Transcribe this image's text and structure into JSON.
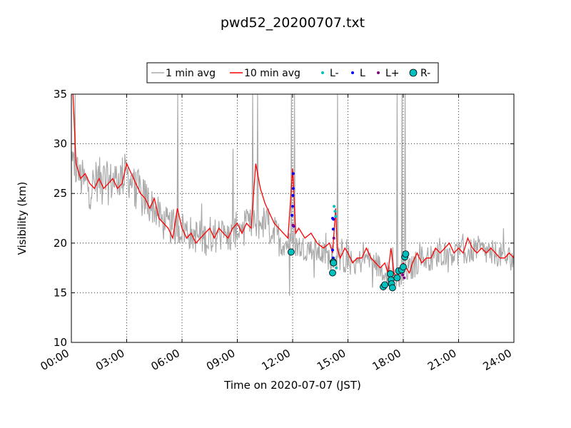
{
  "chart_data": {
    "type": "line",
    "title": "pwd52_20200707.txt",
    "xlabel": "Time on 2020-07-07 (JST)",
    "ylabel": "Visibility (km)",
    "xlim": [
      "00:00",
      "24:00"
    ],
    "ylim": [
      10,
      35
    ],
    "x_ticks": [
      "00:00",
      "03:00",
      "06:00",
      "09:00",
      "12:00",
      "15:00",
      "18:00",
      "21:00",
      "24:00"
    ],
    "y_ticks": [
      "10",
      "15",
      "20",
      "25",
      "30",
      "35"
    ],
    "grid": true,
    "legend_position": "top-center",
    "legend": [
      "1 min avg",
      "10 min avg",
      "L-",
      "L",
      "L+",
      "R-"
    ],
    "series": [
      {
        "name": "1 min avg",
        "color": "#aaaaaa",
        "style": "noisy-line",
        "x": [
          "00:00",
          "00:15",
          "00:30",
          "01:00",
          "01:30",
          "02:00",
          "02:30",
          "03:00",
          "03:30",
          "04:00",
          "04:30",
          "05:00",
          "05:30",
          "06:00",
          "06:30",
          "07:00",
          "07:30",
          "08:00",
          "08:30",
          "09:00",
          "09:30",
          "10:00",
          "10:30",
          "11:00",
          "11:30",
          "12:00",
          "12:30",
          "13:00",
          "13:30",
          "14:00",
          "14:30",
          "15:00",
          "15:30",
          "16:00",
          "16:30",
          "17:00",
          "17:30",
          "18:00",
          "18:30",
          "19:00",
          "19:30",
          "20:00",
          "20:30",
          "21:00",
          "21:30",
          "22:00",
          "22:30",
          "23:00",
          "23:30",
          "24:00"
        ],
        "y": [
          27.5,
          27.5,
          26.5,
          25.5,
          26.5,
          26.0,
          26.5,
          27.0,
          25.5,
          24.5,
          23.5,
          22.0,
          21.5,
          21.5,
          21.0,
          20.5,
          20.5,
          21.0,
          20.5,
          21.5,
          21.5,
          22.0,
          22.0,
          21.0,
          20.0,
          20.0,
          19.5,
          19.5,
          19.0,
          18.5,
          18.5,
          18.0,
          18.0,
          18.5,
          18.0,
          17.0,
          16.5,
          17.0,
          17.5,
          18.5,
          18.5,
          19.0,
          19.0,
          19.0,
          19.0,
          19.5,
          19.0,
          19.0,
          18.5,
          18.5
        ],
        "spikes": [
          {
            "x": "00:12",
            "y": 35.0
          },
          {
            "x": "05:45",
            "y": 35.0
          },
          {
            "x": "08:45",
            "y": 29.5
          },
          {
            "x": "09:50",
            "y": 35.0
          },
          {
            "x": "10:05",
            "y": 35.0
          },
          {
            "x": "11:55",
            "y": 35.0
          },
          {
            "x": "12:05",
            "y": 35.0
          },
          {
            "x": "14:25",
            "y": 35.0
          },
          {
            "x": "17:40",
            "y": 35.0
          },
          {
            "x": "17:55",
            "y": 35.0
          },
          {
            "x": "18:05",
            "y": 35.0
          }
        ],
        "dips": [
          {
            "x": "11:50",
            "y": 14.7
          },
          {
            "x": "16:20",
            "y": 15.5
          },
          {
            "x": "17:45",
            "y": 15.7
          },
          {
            "x": "13:10",
            "y": 16.5
          }
        ]
      },
      {
        "name": "10 min avg",
        "color": "#ff0000",
        "x": [
          "00:05",
          "00:15",
          "00:30",
          "00:45",
          "01:00",
          "01:15",
          "01:30",
          "01:45",
          "02:00",
          "02:15",
          "02:30",
          "02:45",
          "03:00",
          "03:15",
          "03:30",
          "03:45",
          "04:00",
          "04:15",
          "04:30",
          "04:45",
          "05:00",
          "05:15",
          "05:30",
          "05:45",
          "06:00",
          "06:15",
          "06:30",
          "06:45",
          "07:00",
          "07:15",
          "07:30",
          "07:45",
          "08:00",
          "08:15",
          "08:30",
          "08:45",
          "09:00",
          "09:15",
          "09:30",
          "09:45",
          "10:00",
          "10:15",
          "10:30",
          "10:45",
          "11:00",
          "11:15",
          "11:30",
          "11:45",
          "12:00",
          "12:10",
          "12:20",
          "12:40",
          "13:00",
          "13:20",
          "13:40",
          "14:00",
          "14:10",
          "14:20",
          "14:25",
          "14:35",
          "14:50",
          "15:00",
          "15:15",
          "15:30",
          "15:45",
          "16:00",
          "16:15",
          "16:30",
          "16:45",
          "17:00",
          "17:10",
          "17:20",
          "17:30",
          "17:40",
          "17:50",
          "18:00",
          "18:10",
          "18:20",
          "18:30",
          "18:45",
          "19:00",
          "19:15",
          "19:30",
          "19:45",
          "20:00",
          "20:15",
          "20:30",
          "20:45",
          "21:00",
          "21:15",
          "21:30",
          "21:45",
          "22:00",
          "22:15",
          "22:30",
          "22:45",
          "23:00",
          "23:15",
          "23:30",
          "23:45",
          "24:00"
        ],
        "y": [
          35.0,
          28.0,
          26.5,
          27.0,
          26.0,
          25.5,
          26.5,
          25.5,
          26.0,
          26.5,
          25.5,
          26.0,
          28.0,
          27.0,
          26.0,
          25.0,
          24.5,
          23.5,
          24.5,
          22.5,
          22.0,
          21.5,
          20.5,
          23.5,
          21.5,
          20.5,
          21.0,
          20.0,
          20.5,
          21.0,
          21.5,
          20.5,
          21.5,
          21.0,
          20.5,
          21.5,
          22.0,
          21.0,
          22.0,
          21.5,
          28.0,
          25.5,
          24.0,
          23.0,
          22.0,
          21.5,
          21.0,
          20.5,
          27.5,
          21.0,
          21.5,
          20.5,
          21.0,
          20.0,
          19.5,
          20.0,
          19.0,
          23.5,
          19.5,
          18.5,
          19.5,
          19.0,
          18.0,
          18.5,
          18.5,
          19.5,
          18.5,
          18.0,
          17.5,
          18.0,
          17.0,
          19.5,
          17.0,
          16.5,
          17.5,
          18.0,
          17.5,
          17.0,
          18.0,
          19.0,
          18.0,
          18.5,
          18.5,
          19.5,
          19.0,
          19.5,
          20.0,
          19.0,
          19.5,
          19.0,
          20.5,
          19.5,
          19.0,
          19.5,
          19.0,
          19.5,
          19.0,
          18.5,
          18.5,
          19.0,
          18.5
        ]
      },
      {
        "name": "L-",
        "color": "#00bfbf",
        "marker": "small-dot",
        "x": [
          "14:15",
          "14:18",
          "14:20",
          "14:22"
        ],
        "y": [
          23.7,
          23.2,
          22.7,
          17.5
        ]
      },
      {
        "name": "L",
        "color": "#0000ff",
        "marker": "small-dot",
        "x": [
          "11:58",
          "12:00",
          "12:01",
          "12:02",
          "12:02",
          "12:03",
          "14:10",
          "14:10",
          "14:12",
          "14:12",
          "14:13",
          "18:00",
          "18:02",
          "18:04"
        ],
        "y": [
          22.8,
          23.7,
          24.8,
          25.5,
          27.0,
          21.7,
          22.5,
          19.3,
          21.4,
          18.5,
          22.4,
          18.5,
          17.8,
          17.5
        ]
      },
      {
        "name": "L+",
        "color": "#800080",
        "marker": "small-dot",
        "x": [
          "12:01",
          "14:14",
          "17:58",
          "18:03"
        ],
        "y": [
          21.8,
          20.5,
          16.8,
          16.5
        ]
      },
      {
        "name": "R-",
        "color": "#00bfbf",
        "marker": "large-circle",
        "x": [
          "11:55",
          "14:10",
          "14:12",
          "14:13",
          "16:55",
          "17:00",
          "17:18",
          "17:20",
          "17:22",
          "17:25",
          "17:40",
          "17:45",
          "17:55",
          "18:00",
          "18:05",
          "18:08"
        ],
        "y": [
          19.1,
          17.0,
          18.1,
          18.0,
          15.6,
          15.8,
          16.9,
          16.3,
          15.9,
          15.5,
          16.5,
          17.2,
          17.3,
          17.6,
          18.6,
          18.9
        ]
      }
    ]
  }
}
